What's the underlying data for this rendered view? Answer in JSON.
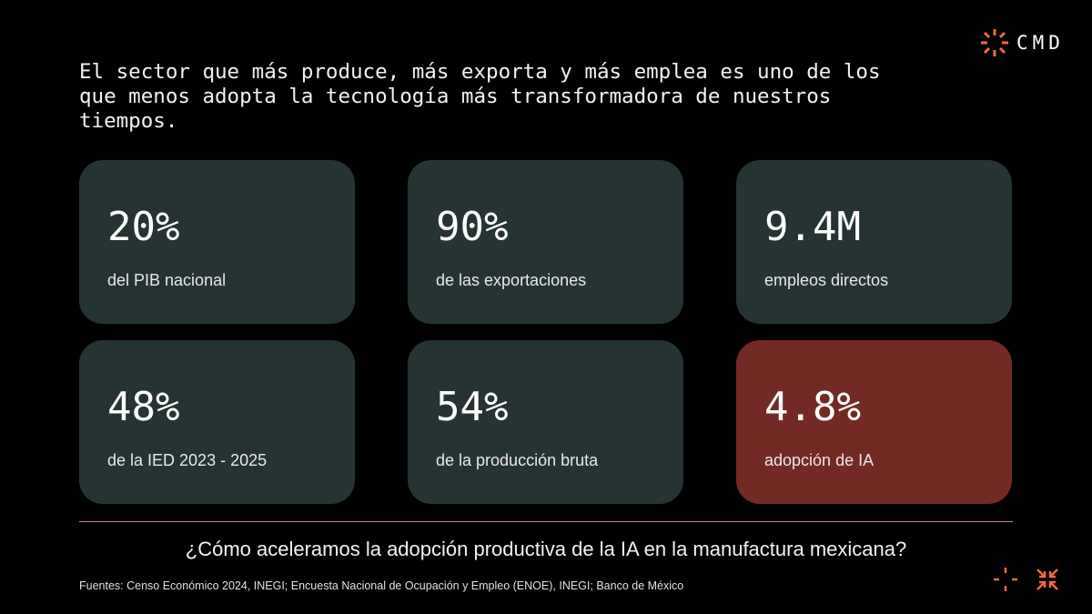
{
  "brand": {
    "name": "CMD",
    "accent_color": "#f26b3a",
    "logo_icon": "sunburst-icon"
  },
  "headline": "El sector que más produce, más exporta y más emplea es uno de los que menos adopta la tecnología más transformadora de nuestros tiempos.",
  "stats": [
    {
      "value": "20%",
      "label": "del PIB nacional",
      "highlight": false
    },
    {
      "value": "90%",
      "label": "de las exportaciones",
      "highlight": false
    },
    {
      "value": "9.4M",
      "label": "empleos directos",
      "highlight": false
    },
    {
      "value": "48%",
      "label": "de la IED 2023 - 2025",
      "highlight": false
    },
    {
      "value": "54%",
      "label": "de la producción bruta",
      "highlight": false
    },
    {
      "value": "4.8%",
      "label": "adopción de IA",
      "highlight": true
    }
  ],
  "colors": {
    "background": "#000000",
    "card": "#253432",
    "card_highlight": "#732a25",
    "divider": "#b98d72"
  },
  "question": "¿Cómo aceleramos la adopción productiva de la IA en la manufactura mexicana?",
  "sources": "Fuentes: Censo Económico 2024, INEGI; Encuesta Nacional de Ocupación y Empleo (ENOE), INEGI; Banco de México",
  "decorations": [
    "crosshair-icon",
    "converging-arrows-icon"
  ]
}
